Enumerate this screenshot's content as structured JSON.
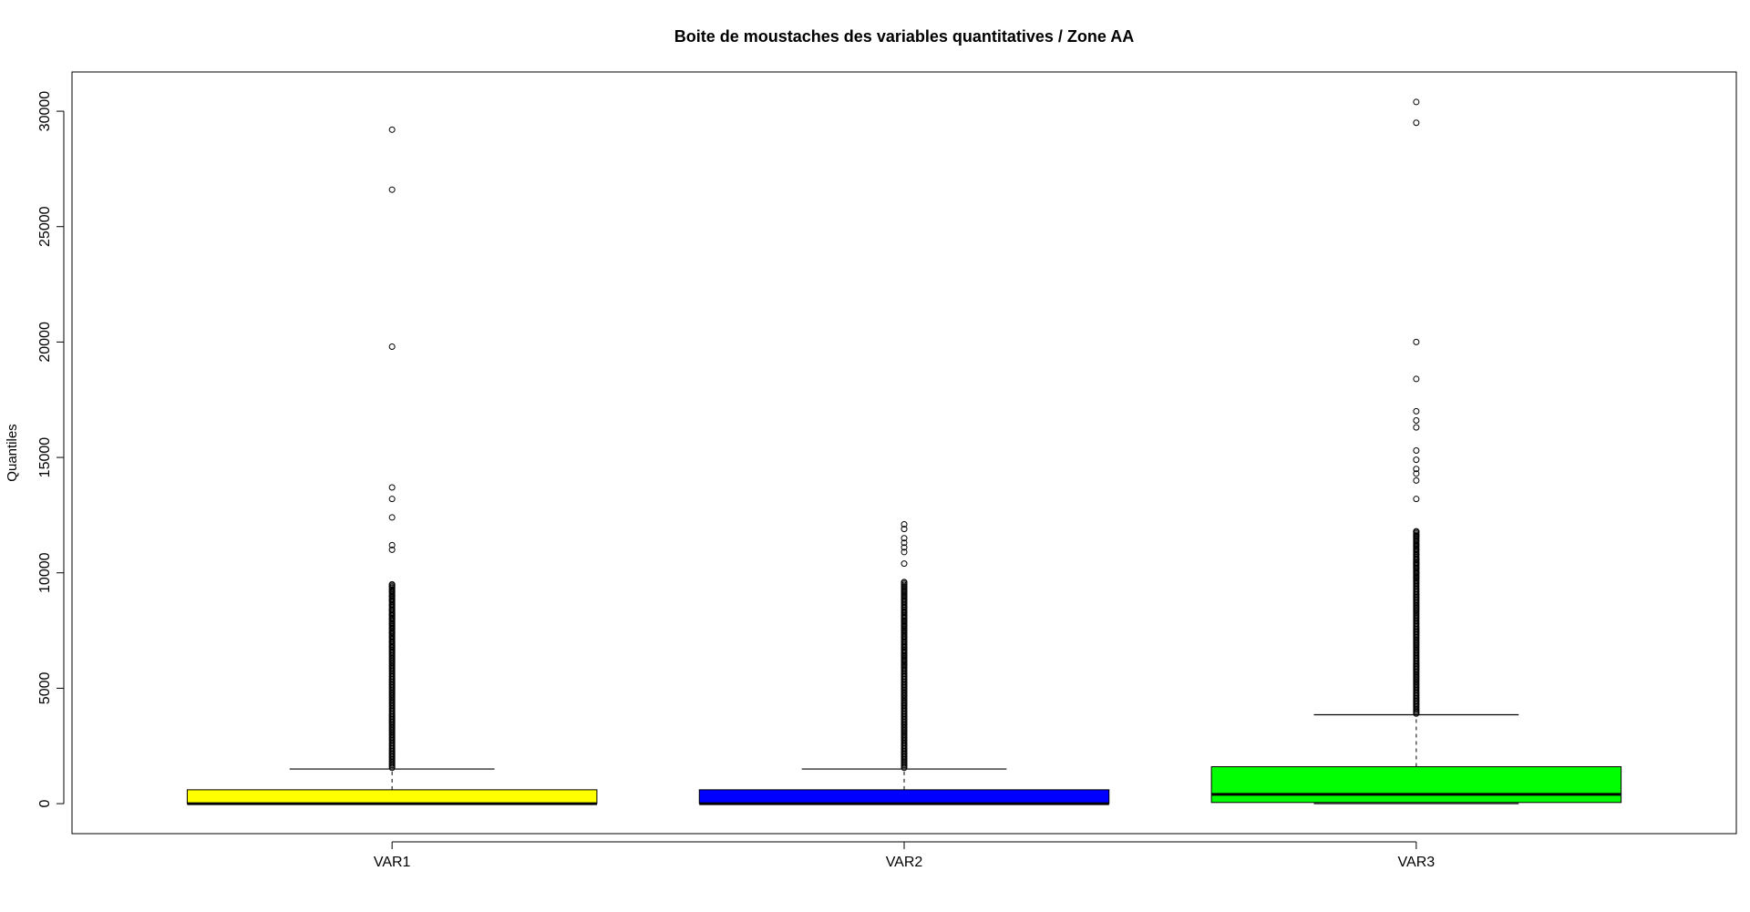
{
  "chart_data": {
    "type": "boxplot",
    "title": "Boite de moustaches des variables quantitatives / Zone AA",
    "xlabel": "",
    "ylabel": "Quantiles",
    "ylim": [
      -1300,
      31700
    ],
    "y_ticks": [
      0,
      5000,
      10000,
      15000,
      20000,
      25000,
      30000
    ],
    "y_tick_labels": [
      "0",
      "5000",
      "10000",
      "15000",
      "20000",
      "25000",
      "30000"
    ],
    "grid": false,
    "legend": "none",
    "categories": [
      "VAR1",
      "VAR2",
      "VAR3"
    ],
    "boxes": [
      {
        "name": "VAR1",
        "color": "#ffff00",
        "min": 0,
        "q1": 0,
        "median": 0,
        "q3": 600,
        "whisker_high": 1500,
        "outlier_band": [
          1550,
          9500
        ],
        "outliers": [
          29200,
          26600,
          19800,
          13700,
          13200,
          12400,
          11200,
          11000,
          9500,
          9400,
          9200,
          9000,
          8800,
          8600,
          8400,
          8200,
          8000,
          7800,
          7600,
          7400,
          7200,
          7000,
          6800
        ]
      },
      {
        "name": "VAR2",
        "color": "#0000ff",
        "min": 0,
        "q1": 0,
        "median": 0,
        "q3": 600,
        "whisker_high": 1500,
        "outlier_band": [
          1550,
          9600
        ],
        "outliers": [
          12100,
          11900,
          11500,
          11300,
          11100,
          10900,
          10400,
          9600,
          9400,
          9200,
          9000,
          8800,
          8500,
          8300,
          8100,
          7900,
          7700,
          7500,
          7200,
          7000,
          6800,
          6600,
          6400,
          6200,
          6000
        ]
      },
      {
        "name": "VAR3",
        "color": "#00ff00",
        "min": 0,
        "q1": 50,
        "median": 400,
        "q3": 1600,
        "whisker_high": 3850,
        "outlier_band": [
          3900,
          11800
        ],
        "outliers": [
          30400,
          29500,
          20000,
          18400,
          17000,
          16600,
          16300,
          15300,
          14900,
          14500,
          14300,
          14000,
          13200,
          11800,
          11600,
          11200,
          11000,
          10800,
          10600,
          10400,
          10200,
          10000,
          9800
        ]
      }
    ]
  }
}
